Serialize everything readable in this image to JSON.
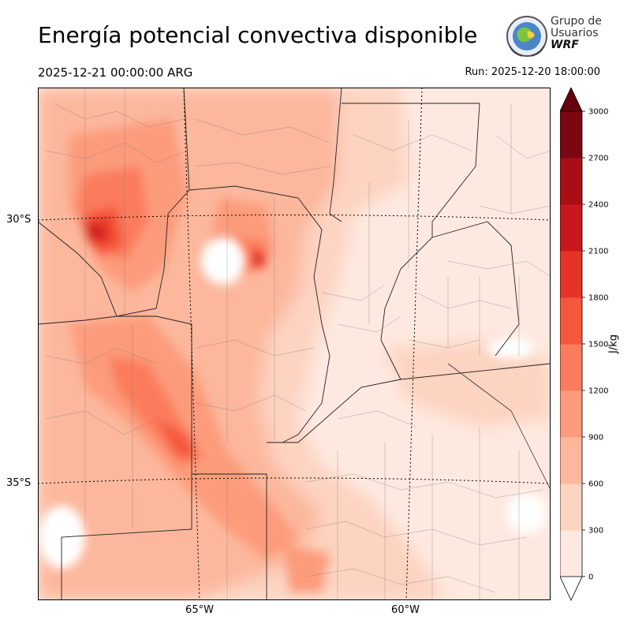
{
  "header": {
    "title": "Energía potencial convectiva disponible",
    "valid_time": "2025-12-21 00:00:00 ARG",
    "run_time": "Run: 2025-12-20 18:00:00"
  },
  "logo": {
    "line1": "Grupo de",
    "line2": "Usuarios",
    "line3": "WRF"
  },
  "map": {
    "lat_labels": [
      "30°S",
      "35°S"
    ],
    "lon_labels": [
      "65°W",
      "60°W"
    ]
  },
  "colorbar": {
    "unit": "J/kg",
    "ticks": [
      "0",
      "300",
      "600",
      "900",
      "1200",
      "1500",
      "1800",
      "2100",
      "2400",
      "2700",
      "3000"
    ],
    "colors": [
      "#fee9e0",
      "#fdd3c1",
      "#fcb79c",
      "#fc9b7b",
      "#fb7c5c",
      "#f5573d",
      "#e43426",
      "#c9181d",
      "#a70f15",
      "#7b0713",
      "#67000d"
    ],
    "max_extend": "#67000d"
  }
}
